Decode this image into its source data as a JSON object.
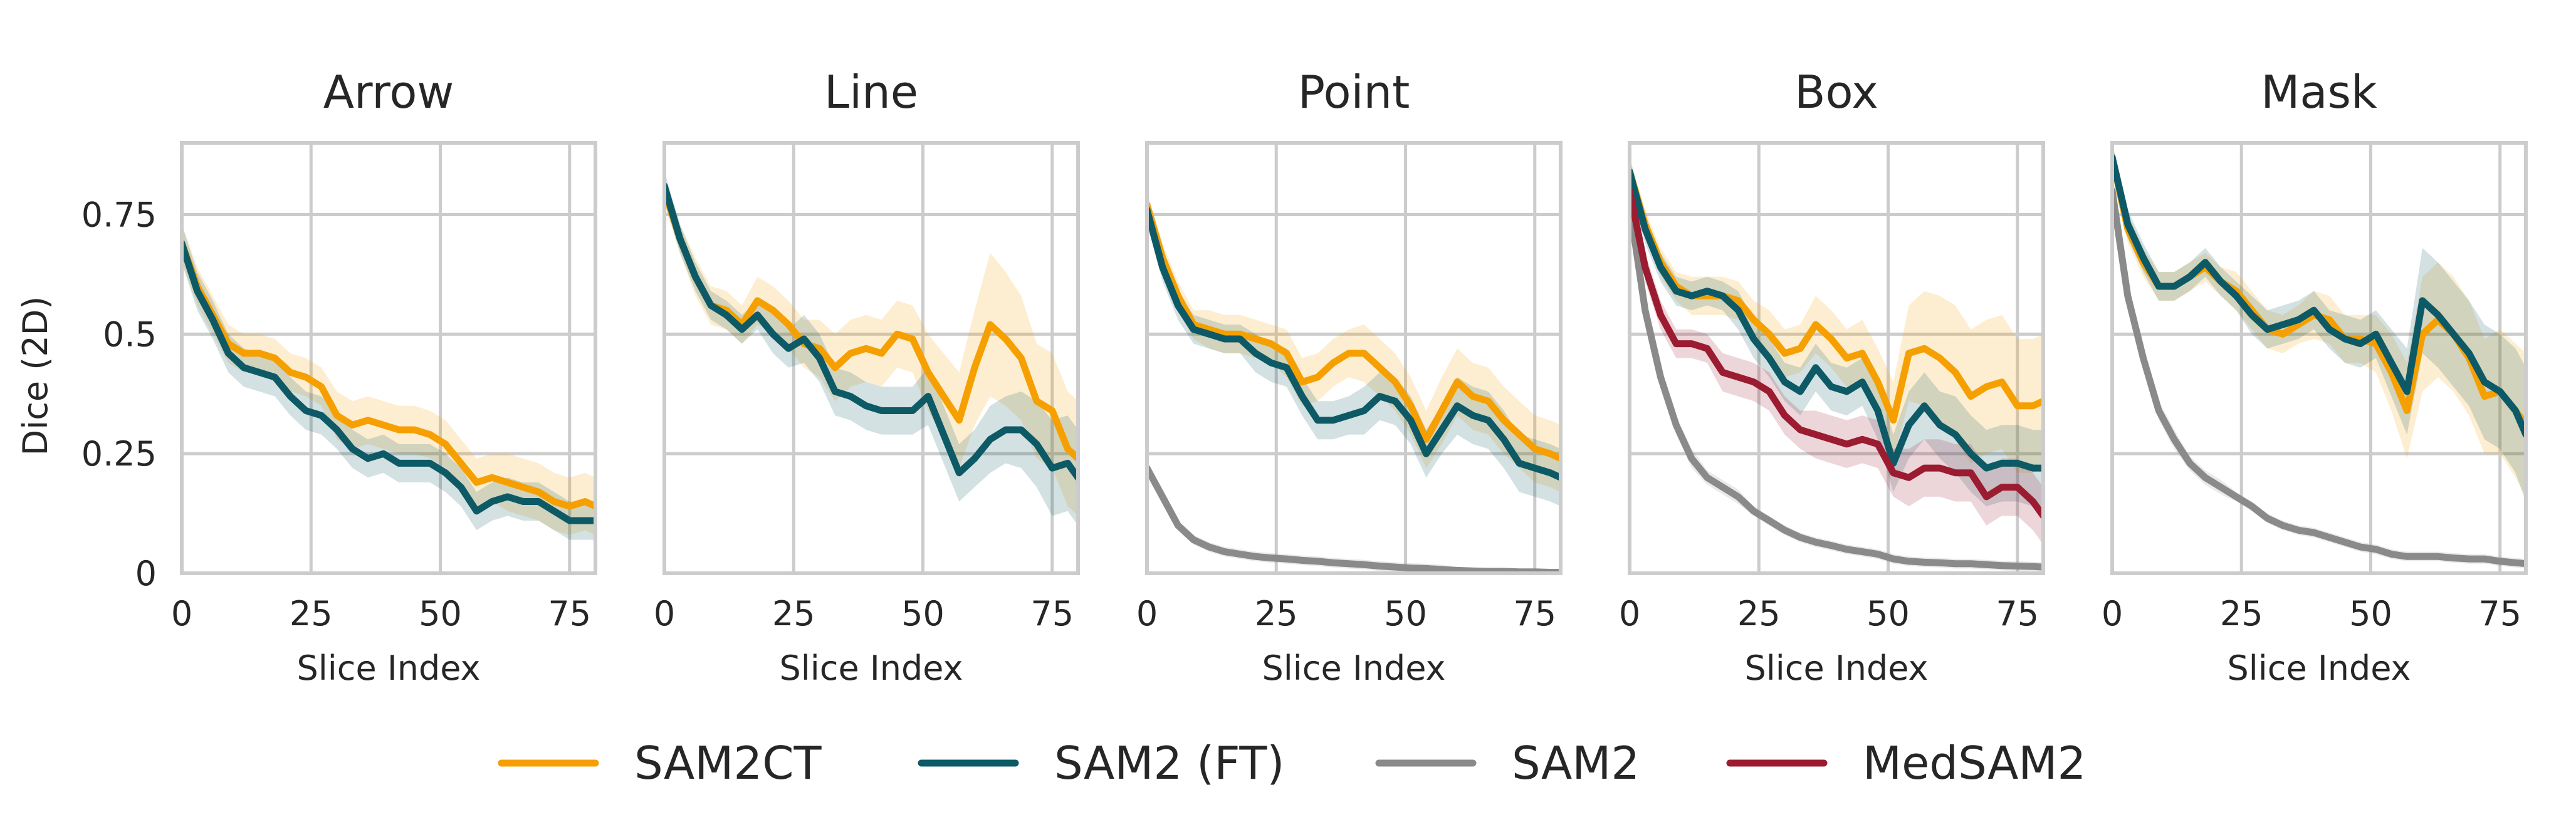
{
  "chart_data": {
    "type": "line",
    "ylabel": "Dice (2D)",
    "xlabel": "Slice Index",
    "xlim": [
      0,
      80
    ],
    "ylim": [
      0,
      0.9
    ],
    "x_ticks": [
      0,
      25,
      50,
      75
    ],
    "x_tick_labels": [
      "0",
      "25",
      "50",
      "75"
    ],
    "y_ticks": [
      0,
      0.25,
      0.5,
      0.75
    ],
    "y_tick_labels": [
      "0",
      "0.25",
      "0.5",
      "0.75"
    ],
    "grid": true,
    "legend_position": "bottom",
    "legend": [
      {
        "label": "SAM2CT",
        "color": "#f5a000"
      },
      {
        "label": "SAM2 (FT)",
        "color": "#0d5a66"
      },
      {
        "label": "SAM2",
        "color": "#8a8a8a"
      },
      {
        "label": "MedSAM2",
        "color": "#9b1c31"
      }
    ],
    "x": [
      0,
      3,
      6,
      9,
      12,
      15,
      18,
      21,
      24,
      27,
      30,
      33,
      36,
      39,
      42,
      45,
      48,
      51,
      54,
      57,
      60,
      63,
      66,
      69,
      72,
      75,
      78,
      80
    ],
    "panels": [
      {
        "title": "Arrow",
        "series": [
          {
            "name": "SAM2CT",
            "color": "#f5a000",
            "values": [
              0.69,
              0.6,
              0.54,
              0.48,
              0.46,
              0.46,
              0.45,
              0.42,
              0.41,
              0.39,
              0.33,
              0.31,
              0.32,
              0.31,
              0.3,
              0.3,
              0.29,
              0.27,
              0.23,
              0.19,
              0.2,
              0.19,
              0.18,
              0.17,
              0.15,
              0.14,
              0.15,
              0.14
            ],
            "band": [
              0.04,
              0.04,
              0.04,
              0.04,
              0.04,
              0.04,
              0.04,
              0.04,
              0.04,
              0.04,
              0.05,
              0.05,
              0.05,
              0.05,
              0.05,
              0.05,
              0.05,
              0.05,
              0.05,
              0.05,
              0.05,
              0.06,
              0.06,
              0.06,
              0.06,
              0.06,
              0.06,
              0.06
            ]
          },
          {
            "name": "SAM2 (FT)",
            "color": "#0d5a66",
            "values": [
              0.69,
              0.59,
              0.53,
              0.46,
              0.43,
              0.42,
              0.41,
              0.37,
              0.34,
              0.33,
              0.3,
              0.26,
              0.24,
              0.25,
              0.23,
              0.23,
              0.23,
              0.21,
              0.18,
              0.13,
              0.15,
              0.16,
              0.15,
              0.15,
              0.13,
              0.11,
              0.11,
              0.11
            ],
            "band": [
              0.04,
              0.04,
              0.04,
              0.04,
              0.04,
              0.04,
              0.04,
              0.04,
              0.04,
              0.04,
              0.04,
              0.04,
              0.04,
              0.04,
              0.04,
              0.04,
              0.04,
              0.04,
              0.04,
              0.04,
              0.04,
              0.04,
              0.04,
              0.04,
              0.04,
              0.04,
              0.04,
              0.04
            ]
          }
        ]
      },
      {
        "title": "Line",
        "series": [
          {
            "name": "SAM2CT",
            "color": "#f5a000",
            "values": [
              0.8,
              0.7,
              0.62,
              0.56,
              0.55,
              0.52,
              0.57,
              0.55,
              0.52,
              0.48,
              0.47,
              0.43,
              0.46,
              0.47,
              0.46,
              0.5,
              0.49,
              0.42,
              0.37,
              0.32,
              0.43,
              0.52,
              0.49,
              0.45,
              0.36,
              0.34,
              0.26,
              0.24
            ],
            "band": [
              0.03,
              0.03,
              0.04,
              0.04,
              0.04,
              0.04,
              0.05,
              0.05,
              0.05,
              0.05,
              0.06,
              0.07,
              0.07,
              0.07,
              0.07,
              0.07,
              0.07,
              0.08,
              0.09,
              0.1,
              0.12,
              0.15,
              0.14,
              0.13,
              0.12,
              0.12,
              0.12,
              0.12
            ]
          },
          {
            "name": "SAM2 (FT)",
            "color": "#0d5a66",
            "values": [
              0.81,
              0.7,
              0.62,
              0.56,
              0.54,
              0.51,
              0.54,
              0.5,
              0.47,
              0.49,
              0.45,
              0.38,
              0.37,
              0.35,
              0.34,
              0.34,
              0.34,
              0.37,
              0.29,
              0.21,
              0.24,
              0.28,
              0.3,
              0.3,
              0.27,
              0.22,
              0.23,
              0.2
            ],
            "band": [
              0.03,
              0.03,
              0.03,
              0.03,
              0.03,
              0.03,
              0.03,
              0.04,
              0.04,
              0.05,
              0.05,
              0.05,
              0.05,
              0.05,
              0.05,
              0.05,
              0.05,
              0.06,
              0.06,
              0.06,
              0.06,
              0.07,
              0.07,
              0.08,
              0.09,
              0.1,
              0.1,
              0.1
            ]
          }
        ]
      },
      {
        "title": "Point",
        "series": [
          {
            "name": "SAM2CT",
            "color": "#f5a000",
            "values": [
              0.77,
              0.66,
              0.58,
              0.52,
              0.51,
              0.5,
              0.5,
              0.49,
              0.48,
              0.46,
              0.4,
              0.41,
              0.44,
              0.46,
              0.46,
              0.43,
              0.4,
              0.35,
              0.28,
              0.34,
              0.4,
              0.37,
              0.36,
              0.32,
              0.29,
              0.26,
              0.25,
              0.24
            ],
            "band": [
              0.03,
              0.03,
              0.03,
              0.03,
              0.04,
              0.04,
              0.04,
              0.04,
              0.04,
              0.05,
              0.05,
              0.05,
              0.05,
              0.05,
              0.06,
              0.06,
              0.06,
              0.06,
              0.06,
              0.07,
              0.07,
              0.07,
              0.07,
              0.07,
              0.07,
              0.07,
              0.07,
              0.07
            ]
          },
          {
            "name": "SAM2 (FT)",
            "color": "#0d5a66",
            "values": [
              0.76,
              0.64,
              0.56,
              0.51,
              0.5,
              0.49,
              0.49,
              0.46,
              0.44,
              0.43,
              0.37,
              0.32,
              0.32,
              0.33,
              0.34,
              0.37,
              0.36,
              0.32,
              0.25,
              0.3,
              0.35,
              0.33,
              0.32,
              0.28,
              0.23,
              0.22,
              0.21,
              0.2
            ],
            "band": [
              0.03,
              0.03,
              0.03,
              0.03,
              0.03,
              0.03,
              0.03,
              0.04,
              0.04,
              0.04,
              0.04,
              0.04,
              0.04,
              0.04,
              0.05,
              0.05,
              0.05,
              0.05,
              0.05,
              0.05,
              0.06,
              0.06,
              0.06,
              0.06,
              0.06,
              0.06,
              0.06,
              0.06
            ]
          },
          {
            "name": "SAM2",
            "color": "#8a8a8a",
            "values": [
              0.22,
              0.16,
              0.1,
              0.07,
              0.055,
              0.045,
              0.04,
              0.035,
              0.032,
              0.03,
              0.027,
              0.025,
              0.022,
              0.02,
              0.018,
              0.015,
              0.013,
              0.011,
              0.01,
              0.008,
              0.006,
              0.005,
              0.004,
              0.004,
              0.003,
              0.003,
              0.002,
              0.002
            ],
            "band": [
              0.01,
              0.01,
              0.01,
              0.01,
              0.01,
              0.01,
              0.01,
              0.01,
              0.01,
              0.01,
              0.01,
              0.01,
              0.01,
              0.01,
              0.01,
              0.01,
              0.01,
              0.01,
              0.01,
              0.01,
              0.005,
              0.005,
              0.005,
              0.005,
              0.005,
              0.005,
              0.005,
              0.005
            ]
          }
        ]
      },
      {
        "title": "Box",
        "series": [
          {
            "name": "SAM2CT",
            "color": "#f5a000",
            "values": [
              0.84,
              0.73,
              0.65,
              0.6,
              0.58,
              0.58,
              0.58,
              0.57,
              0.53,
              0.5,
              0.46,
              0.47,
              0.52,
              0.49,
              0.45,
              0.46,
              0.4,
              0.32,
              0.46,
              0.47,
              0.45,
              0.42,
              0.37,
              0.39,
              0.4,
              0.35,
              0.35,
              0.36
            ],
            "band": [
              0.03,
              0.03,
              0.03,
              0.03,
              0.04,
              0.04,
              0.04,
              0.04,
              0.04,
              0.05,
              0.05,
              0.05,
              0.06,
              0.06,
              0.06,
              0.07,
              0.07,
              0.08,
              0.1,
              0.12,
              0.13,
              0.14,
              0.14,
              0.14,
              0.14,
              0.14,
              0.14,
              0.14
            ]
          },
          {
            "name": "SAM2 (FT)",
            "color": "#0d5a66",
            "values": [
              0.84,
              0.72,
              0.64,
              0.59,
              0.58,
              0.59,
              0.58,
              0.55,
              0.49,
              0.45,
              0.4,
              0.38,
              0.43,
              0.39,
              0.38,
              0.4,
              0.34,
              0.23,
              0.31,
              0.35,
              0.31,
              0.29,
              0.25,
              0.22,
              0.23,
              0.23,
              0.22,
              0.22
            ],
            "band": [
              0.03,
              0.03,
              0.03,
              0.03,
              0.03,
              0.03,
              0.03,
              0.04,
              0.04,
              0.04,
              0.04,
              0.05,
              0.05,
              0.05,
              0.05,
              0.05,
              0.06,
              0.06,
              0.07,
              0.07,
              0.07,
              0.08,
              0.08,
              0.08,
              0.08,
              0.08,
              0.08,
              0.08
            ]
          },
          {
            "name": "SAM2",
            "color": "#8a8a8a",
            "values": [
              0.77,
              0.55,
              0.41,
              0.31,
              0.24,
              0.2,
              0.18,
              0.16,
              0.13,
              0.11,
              0.09,
              0.075,
              0.065,
              0.058,
              0.05,
              0.045,
              0.04,
              0.03,
              0.025,
              0.023,
              0.022,
              0.02,
              0.02,
              0.018,
              0.016,
              0.015,
              0.014,
              0.013
            ],
            "band": [
              0.02,
              0.02,
              0.02,
              0.02,
              0.02,
              0.015,
              0.015,
              0.015,
              0.01,
              0.01,
              0.01,
              0.01,
              0.01,
              0.01,
              0.01,
              0.01,
              0.01,
              0.01,
              0.01,
              0.01,
              0.01,
              0.01,
              0.01,
              0.01,
              0.01,
              0.01,
              0.01,
              0.01
            ]
          },
          {
            "name": "MedSAM2",
            "color": "#9b1c31",
            "values": [
              0.8,
              0.64,
              0.54,
              0.48,
              0.48,
              0.47,
              0.42,
              0.41,
              0.4,
              0.38,
              0.33,
              0.3,
              0.29,
              0.28,
              0.27,
              0.28,
              0.27,
              0.21,
              0.2,
              0.22,
              0.22,
              0.21,
              0.21,
              0.16,
              0.18,
              0.18,
              0.15,
              0.12
            ],
            "band": [
              0.03,
              0.03,
              0.03,
              0.03,
              0.03,
              0.03,
              0.04,
              0.04,
              0.04,
              0.04,
              0.04,
              0.04,
              0.05,
              0.05,
              0.05,
              0.05,
              0.05,
              0.05,
              0.06,
              0.06,
              0.06,
              0.06,
              0.06,
              0.06,
              0.06,
              0.06,
              0.06,
              0.06
            ]
          }
        ]
      },
      {
        "title": "Mask",
        "series": [
          {
            "name": "SAM2CT",
            "color": "#f5a000",
            "values": [
              0.87,
              0.72,
              0.65,
              0.6,
              0.6,
              0.62,
              0.64,
              0.61,
              0.59,
              0.55,
              0.51,
              0.5,
              0.52,
              0.54,
              0.53,
              0.49,
              0.49,
              0.48,
              0.42,
              0.34,
              0.5,
              0.53,
              0.5,
              0.45,
              0.37,
              0.38,
              0.34,
              0.31
            ],
            "band": [
              0.03,
              0.03,
              0.03,
              0.03,
              0.03,
              0.03,
              0.03,
              0.03,
              0.04,
              0.04,
              0.04,
              0.04,
              0.04,
              0.05,
              0.05,
              0.05,
              0.05,
              0.06,
              0.08,
              0.1,
              0.12,
              0.12,
              0.12,
              0.12,
              0.12,
              0.13,
              0.14,
              0.15
            ]
          },
          {
            "name": "SAM2 (FT)",
            "color": "#0d5a66",
            "values": [
              0.87,
              0.73,
              0.66,
              0.6,
              0.6,
              0.62,
              0.65,
              0.61,
              0.58,
              0.54,
              0.51,
              0.52,
              0.53,
              0.55,
              0.51,
              0.49,
              0.48,
              0.5,
              0.44,
              0.38,
              0.57,
              0.54,
              0.5,
              0.46,
              0.4,
              0.38,
              0.34,
              0.29
            ],
            "band": [
              0.03,
              0.03,
              0.03,
              0.03,
              0.03,
              0.03,
              0.03,
              0.03,
              0.03,
              0.04,
              0.04,
              0.04,
              0.04,
              0.04,
              0.04,
              0.05,
              0.05,
              0.05,
              0.07,
              0.09,
              0.11,
              0.11,
              0.11,
              0.11,
              0.12,
              0.12,
              0.13,
              0.14
            ]
          },
          {
            "name": "SAM2",
            "color": "#8a8a8a",
            "values": [
              0.8,
              0.58,
              0.45,
              0.34,
              0.28,
              0.23,
              0.2,
              0.18,
              0.16,
              0.14,
              0.115,
              0.1,
              0.09,
              0.085,
              0.075,
              0.065,
              0.055,
              0.05,
              0.04,
              0.035,
              0.035,
              0.035,
              0.032,
              0.03,
              0.03,
              0.025,
              0.022,
              0.02
            ],
            "band": [
              0.02,
              0.02,
              0.02,
              0.02,
              0.02,
              0.015,
              0.015,
              0.015,
              0.01,
              0.01,
              0.01,
              0.01,
              0.01,
              0.01,
              0.01,
              0.01,
              0.01,
              0.01,
              0.01,
              0.01,
              0.01,
              0.01,
              0.01,
              0.01,
              0.01,
              0.01,
              0.01,
              0.01
            ]
          }
        ]
      }
    ]
  }
}
